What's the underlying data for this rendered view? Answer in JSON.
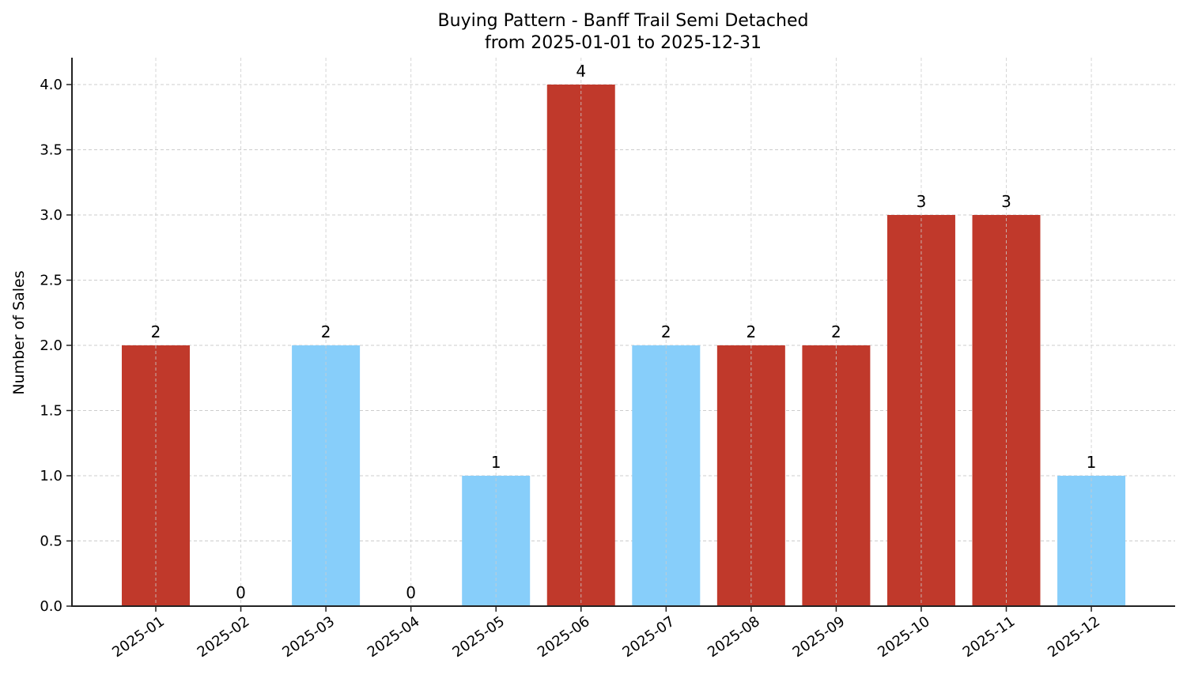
{
  "chart_data": {
    "type": "bar",
    "title": "Buying Pattern - Banff Trail Semi Detached",
    "subtitle": "from 2025-01-01 to 2025-12-31",
    "xlabel": "",
    "ylabel": "Number of Sales",
    "categories": [
      "2025-01",
      "2025-02",
      "2025-03",
      "2025-04",
      "2025-05",
      "2025-06",
      "2025-07",
      "2025-08",
      "2025-09",
      "2025-10",
      "2025-11",
      "2025-12"
    ],
    "values": [
      2,
      0,
      2,
      0,
      1,
      4,
      2,
      2,
      2,
      3,
      3,
      1
    ],
    "bar_colors": [
      "#c0392b",
      "#87cefa",
      "#87cefa",
      "#87cefa",
      "#87cefa",
      "#c0392b",
      "#87cefa",
      "#c0392b",
      "#c0392b",
      "#c0392b",
      "#c0392b",
      "#87cefa"
    ],
    "data_labels": [
      "2",
      "0",
      "2",
      "0",
      "1",
      "4",
      "2",
      "2",
      "2",
      "3",
      "3",
      "1"
    ],
    "yticks": [
      0.0,
      0.5,
      1.0,
      1.5,
      2.0,
      2.5,
      3.0,
      3.5,
      4.0
    ],
    "ytick_labels": [
      "0.0",
      "0.5",
      "1.0",
      "1.5",
      "2.0",
      "2.5",
      "3.0",
      "3.5",
      "4.0"
    ],
    "ylim": [
      0,
      4.2
    ],
    "grid": true,
    "legend": null,
    "colors": {
      "high": "#c0392b",
      "low": "#87cefa",
      "grid": "#cccccc",
      "axis": "#222222"
    }
  }
}
